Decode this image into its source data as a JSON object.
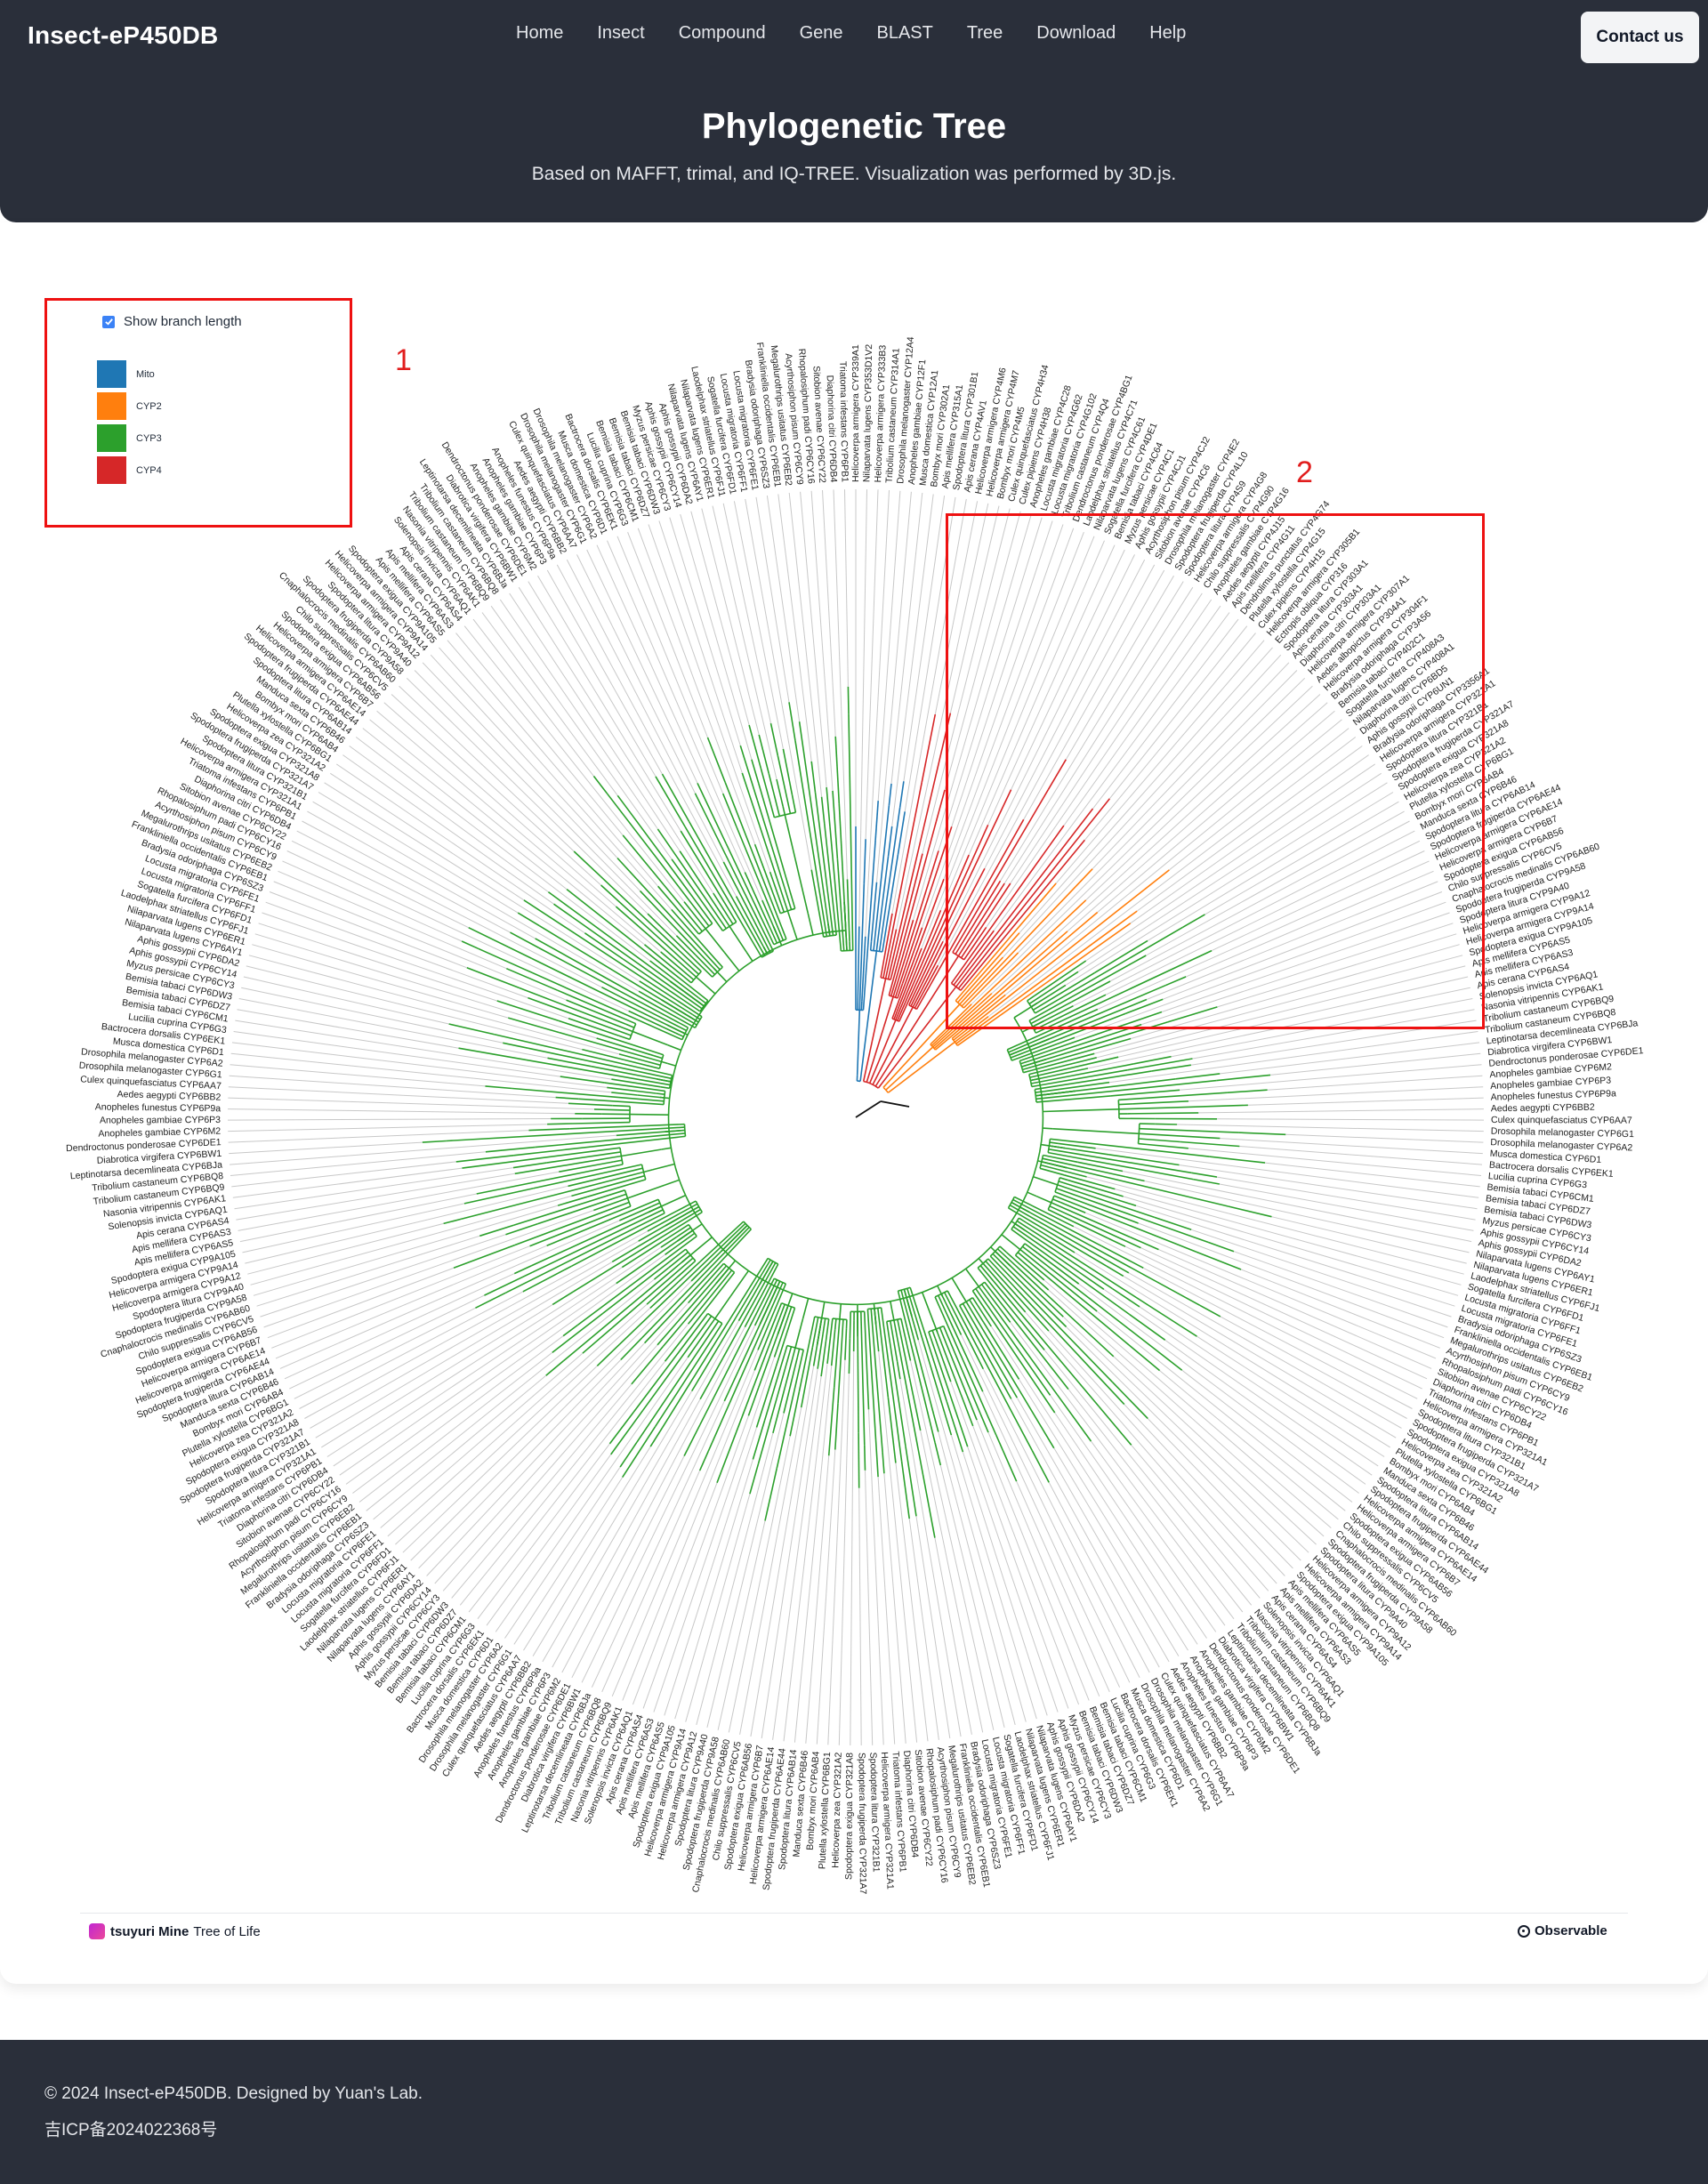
{
  "app": {
    "brand": "Insect-eP450DB",
    "nav": [
      {
        "label": "Home"
      },
      {
        "label": "Insect"
      },
      {
        "label": "Compound"
      },
      {
        "label": "Gene"
      },
      {
        "label": "BLAST"
      },
      {
        "label": "Tree"
      },
      {
        "label": "Download"
      },
      {
        "label": "Help"
      }
    ],
    "contact_label": "Contact us"
  },
  "hero": {
    "title": "Phylogenetic Tree",
    "subtitle": "Based on MAFFT, trimal, and IQ-TREE. Visualization was performed by 3D.js."
  },
  "controls": {
    "show_branch_length_label": "Show branch length",
    "show_branch_length_checked": true
  },
  "legend": [
    {
      "label": "Mito",
      "color": "#1f77b4"
    },
    {
      "label": "CYP2",
      "color": "#ff7f0e"
    },
    {
      "label": "CYP3",
      "color": "#2ca02c"
    },
    {
      "label": "CYP4",
      "color": "#d62728"
    }
  ],
  "annotations": {
    "box1_label": "1",
    "box2_label": "2",
    "box_color": "#ee1111"
  },
  "tree": {
    "leaf_names": [
      "Helicoverpa armigera CYP321A1",
      "Spodoptera litura CYP321B1",
      "Spodoptera frugiperda CYP321A7",
      "Spodoptera exigua CYP321A8",
      "Helicoverpa zea CYP321A2",
      "Plutella xylostella CYP6BG1",
      "Bombyx mori CYP6AB4",
      "Manduca sexta CYP6B46",
      "Spodoptera litura CYP6AB14",
      "Spodoptera frugiperda CYP6AE44",
      "Helicoverpa armigera CYP6AE14",
      "Helicoverpa armigera CYP6B7",
      "Spodoptera exigua CYP6AB56",
      "Chilo suppressalis CYP6CV5",
      "Cnaphalocrocis medinalis CYP6AB60",
      "Spodoptera frugiperda CYP9A58",
      "Spodoptera litura CYP9A40",
      "Helicoverpa armigera CYP9A12",
      "Helicoverpa armigera CYP9A14",
      "Spodoptera exigua CYP9A105",
      "Apis mellifera CYP6AS5",
      "Apis mellifera CYP6AS3",
      "Apis cerana CYP6AS4",
      "Solenopsis invicta CYP6AQ1",
      "Nasonia vitripennis CYP6AK1",
      "Tribolium castaneum CYP6BQ9",
      "Tribolium castaneum CYP6BQ8",
      "Leptinotarsa decemlineata CYP6BJa",
      "Diabrotica virgifera CYP6BW1",
      "Dendroctonus ponderosae CYP6DE1",
      "Anopheles gambiae CYP6M2",
      "Anopheles gambiae CYP6P3",
      "Anopheles funestus CYP6P9a",
      "Aedes aegypti CYP6BB2",
      "Culex quinquefasciatus CYP6AA7",
      "Drosophila melanogaster CYP6G1",
      "Drosophila melanogaster CYP6A2",
      "Musca domestica CYP6D1",
      "Bactrocera dorsalis CYP6EK1",
      "Lucilia cuprina CYP6G3",
      "Bemisia tabaci CYP6CM1",
      "Bemisia tabaci CYP6DZ7",
      "Bemisia tabaci CYP6DW3",
      "Myzus persicae CYP6CY3",
      "Aphis gossypii CYP6CY14",
      "Aphis gossypii CYP6DA2",
      "Nilaparvata lugens CYP6AY1",
      "Nilaparvata lugens CYP6ER1",
      "Laodelphax striatellus CYP6FJ1",
      "Sogatella furcifera CYP6FD1",
      "Locusta migratoria CYP6FF1",
      "Locusta migratoria CYP6FE1",
      "Bradysia odoriphaga CYP6SZ3",
      "Frankliniella occidentalis CYP6EB1",
      "Megalurothrips usitatus CYP6EB2",
      "Acyrthosiphon pisum CYP6CY9",
      "Rhopalosiphum padi CYP6CY16",
      "Sitobion avenae CYP6CY22",
      "Diaphorina citri CYP6DB4",
      "Triatoma infestans CYP6PB1"
    ],
    "mito_leaves": [
      "Helicoverpa armigera CYP339A1",
      "Nilaparvata lugens CYP353D1V2",
      "Helicoverpa armigera CYP333B3",
      "Tribolium castaneum CYP314A1",
      "Drosophila melanogaster CYP12A4",
      "Anopheles gambiae CYP12F1",
      "Musca domestica CYP12A1",
      "Bombyx mori CYP302A1",
      "Apis mellifera CYP315A1",
      "Spodoptera litura CYP301B1"
    ],
    "cyp4_leaves": [
      "Apis cerana CYP4AV1",
      "Helicoverpa armigera CYP4M6",
      "Helicoverpa armigera CYP4M7",
      "Bombyx mori CYP4M5",
      "Culex quinquefasciatus CYP4H34",
      "Culex pipiens CYP4H38",
      "Anopheles gambiae CYP4C28",
      "Locusta migratoria CYP4G62",
      "Locusta migratoria CYP4G102",
      "Tribolium castaneum CYP4Q4",
      "Dendroctonus ponderosae CYP4BG1",
      "Laodelphax striatellus CYP4C71",
      "Nilaparvata lugens CYP4C61",
      "Sogatella furcifera CYP4DE1",
      "Bemisia tabaci CYP4C64",
      "Myzus persicae CYP4C1",
      "Aphis gossypii CYP4CJ1",
      "Acyrthosiphon pisum CYP4CJ2",
      "Sitobion avenae CYP4C6",
      "Drosophila melanogaster CYP4E2",
      "Spodoptera frugiperda CYP4L10",
      "Spodoptera litura CYP4S9",
      "Helicoverpa armigera CYP4G8",
      "Chilo suppressalis CYP4G90",
      "Anopheles gambiae CYP4G16",
      "Aedes aegypti CYP4J15",
      "Apis mellifera CYP4G11",
      "Dendrolimus punctatus CYP4G74",
      "Plutella xylostella CYP4G15",
      "Culex pipiens CYP4H15"
    ],
    "cyp2_leaves": [
      "Helicoverpa armigera CYP305B1",
      "Ectropis obliqua CYP316",
      "Spodoptera litura CYP303A1",
      "Apis cerana CYP303A1",
      "Diaphorina citri CYP303A1",
      "Helicoverpa armigera CYP307A1",
      "Aedes albopictus CYP304A1",
      "Helicoverpa armigera CYP304F1",
      "Bradysia odoriphaga CYP3A56",
      "Bemisia tabaci CYP402C1",
      "Sogatella furcifera CYP408A3",
      "Nilaparvata lugens CYP408A1",
      "Diaphorina citri CYP6BD5",
      "Aphis gossypii CYP6UN1",
      "Bradysia odoriphaga CYP3356A1"
    ]
  },
  "credit": {
    "brand": "tsuyuri Mine",
    "text": "Tree of Life",
    "observable": "Observable"
  },
  "footer": {
    "copyright": "© 2024 Insect-eP450DB. Designed by Yuan's Lab.",
    "icp": "吉ICP备2024022368号"
  }
}
